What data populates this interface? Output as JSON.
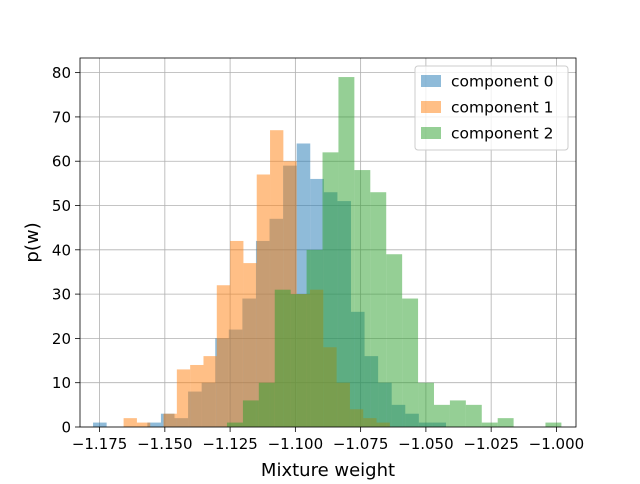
{
  "chart_data": {
    "type": "bar",
    "subtype": "overlapping-histogram",
    "title": "",
    "xlabel": "Mixture weight",
    "ylabel": "p(w)",
    "xlim": [
      -1.1825,
      -0.9925
    ],
    "ylim": [
      0,
      83.3
    ],
    "xticks": [
      -1.175,
      -1.15,
      -1.125,
      -1.1,
      -1.075,
      -1.05,
      -1.025,
      -1.0
    ],
    "xtick_labels": [
      "−1.175",
      "−1.150",
      "−1.125",
      "−1.100",
      "−1.075",
      "−1.050",
      "−1.025",
      "−1.000"
    ],
    "yticks": [
      0,
      10,
      20,
      30,
      40,
      50,
      60,
      70,
      80
    ],
    "ytick_labels": [
      "0",
      "10",
      "20",
      "30",
      "40",
      "50",
      "60",
      "70",
      "80"
    ],
    "grid": true,
    "legend_position": "top-right",
    "alpha": 0.5,
    "series": [
      {
        "name": "component 0",
        "color": "#1f77b4",
        "bins": [
          [
            -1.1775,
            -1.1723,
            1
          ],
          [
            -1.1567,
            -1.1515,
            1
          ],
          [
            -1.1515,
            -1.1463,
            3
          ],
          [
            -1.1463,
            -1.1411,
            2
          ],
          [
            -1.1411,
            -1.1359,
            8
          ],
          [
            -1.1359,
            -1.1307,
            10
          ],
          [
            -1.1307,
            -1.1255,
            20
          ],
          [
            -1.1255,
            -1.1203,
            22
          ],
          [
            -1.1203,
            -1.1151,
            29
          ],
          [
            -1.1151,
            -1.1099,
            42
          ],
          [
            -1.1099,
            -1.1047,
            47
          ],
          [
            -1.1047,
            -1.0995,
            59
          ],
          [
            -1.0995,
            -1.0943,
            64
          ],
          [
            -1.0943,
            -1.0891,
            56
          ],
          [
            -1.0891,
            -1.0839,
            53
          ],
          [
            -1.0839,
            -1.0787,
            51
          ],
          [
            -1.0787,
            -1.0735,
            26
          ],
          [
            -1.0735,
            -1.0683,
            16
          ],
          [
            -1.0683,
            -1.0631,
            10
          ],
          [
            -1.0631,
            -1.0579,
            5
          ],
          [
            -1.0579,
            -1.0527,
            3
          ],
          [
            -1.0527,
            -1.0475,
            1
          ],
          [
            -1.0475,
            -1.0423,
            1
          ]
        ]
      },
      {
        "name": "component 1",
        "color": "#ff7f0e",
        "bins": [
          [
            -1.1658,
            -1.1607,
            2
          ],
          [
            -1.1607,
            -1.1556,
            1
          ],
          [
            -1.1505,
            -1.1454,
            3
          ],
          [
            -1.1454,
            -1.1403,
            13
          ],
          [
            -1.1403,
            -1.1352,
            14
          ],
          [
            -1.1352,
            -1.1301,
            16
          ],
          [
            -1.1301,
            -1.125,
            32
          ],
          [
            -1.125,
            -1.1199,
            42
          ],
          [
            -1.1199,
            -1.1148,
            37
          ],
          [
            -1.1148,
            -1.1097,
            57
          ],
          [
            -1.1097,
            -1.1046,
            67
          ],
          [
            -1.1046,
            -1.0995,
            60
          ],
          [
            -1.0995,
            -1.0944,
            30
          ],
          [
            -1.0944,
            -1.0893,
            31
          ],
          [
            -1.0893,
            -1.0842,
            18
          ],
          [
            -1.0842,
            -1.0791,
            10
          ],
          [
            -1.0791,
            -1.074,
            4
          ],
          [
            -1.074,
            -1.0689,
            2
          ],
          [
            -1.0689,
            -1.0638,
            1
          ]
        ]
      },
      {
        "name": "component 2",
        "color": "#2ca02c",
        "bins": [
          [
            -1.1262,
            -1.1201,
            1
          ],
          [
            -1.1201,
            -1.114,
            6
          ],
          [
            -1.114,
            -1.1079,
            10
          ],
          [
            -1.1079,
            -1.1018,
            31
          ],
          [
            -1.1018,
            -1.0957,
            30
          ],
          [
            -1.0957,
            -1.0896,
            40
          ],
          [
            -1.0896,
            -1.0835,
            62
          ],
          [
            -1.0835,
            -1.0774,
            79
          ],
          [
            -1.0774,
            -1.0713,
            58
          ],
          [
            -1.0713,
            -1.0652,
            53
          ],
          [
            -1.0652,
            -1.0591,
            39
          ],
          [
            -1.0591,
            -1.053,
            29
          ],
          [
            -1.053,
            -1.0469,
            10
          ],
          [
            -1.0469,
            -1.0408,
            5
          ],
          [
            -1.0408,
            -1.0347,
            6
          ],
          [
            -1.0347,
            -1.0286,
            5
          ],
          [
            -1.0286,
            -1.0225,
            1
          ],
          [
            -1.0225,
            -1.0164,
            2
          ],
          [
            -1.0042,
            -0.9981,
            1
          ]
        ]
      }
    ]
  }
}
